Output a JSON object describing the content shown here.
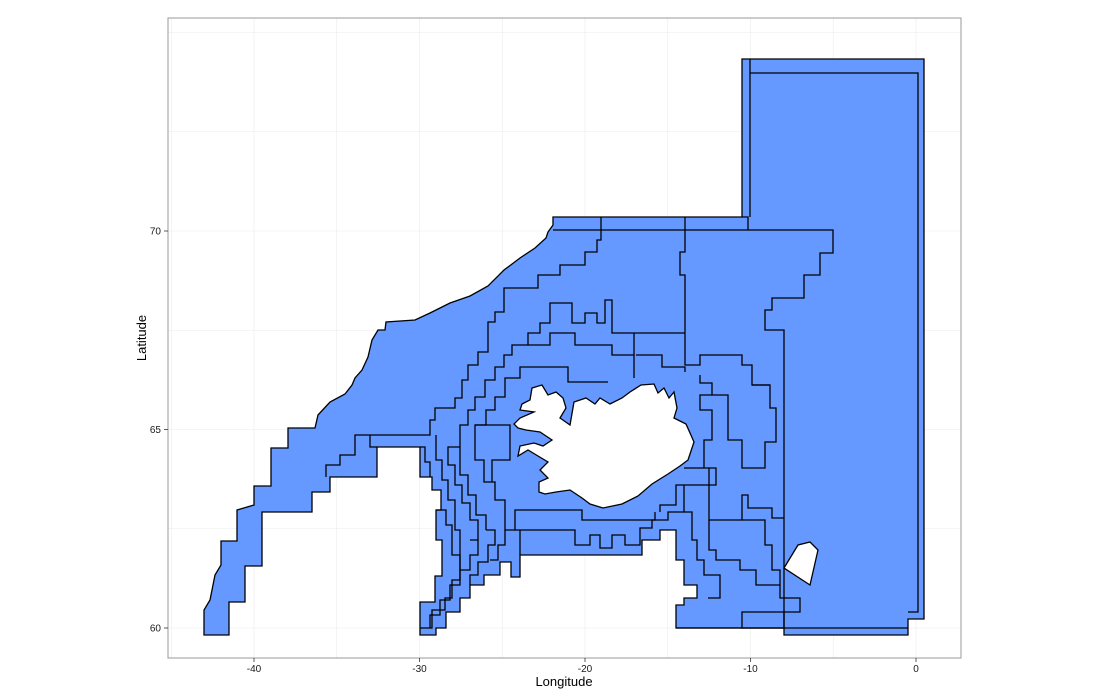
{
  "axes": {
    "xlabel": "Longitude",
    "ylabel": "Latitude",
    "xlim": [
      -45,
      5.5
    ],
    "ylim": [
      59.5,
      74.8
    ],
    "x_ticks": [
      -40,
      -30,
      -20,
      -10,
      0
    ],
    "y_ticks": [
      60,
      65,
      70
    ],
    "x_tick_labels": [
      "-40",
      "-30",
      "-20",
      "-10",
      "0"
    ],
    "y_tick_labels": [
      "60",
      "65",
      "70"
    ],
    "grid": true
  },
  "colors": {
    "region_fill": "#6699FF",
    "outline": "#000000",
    "land": "#FFFFFF",
    "panel_border": "#999999"
  }
}
